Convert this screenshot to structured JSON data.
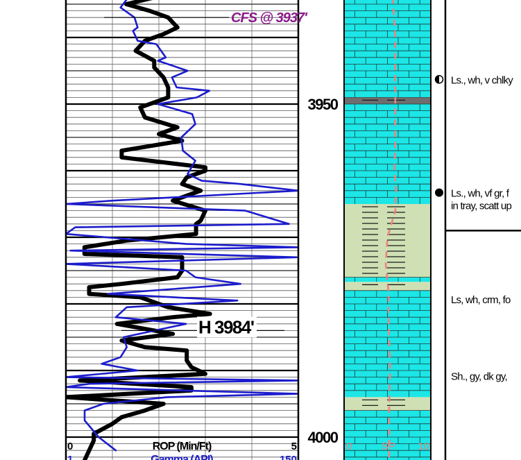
{
  "chart_data": {
    "type": "line",
    "title": "",
    "depth_ticks": [
      {
        "depth": 3950,
        "label": "3950"
      },
      {
        "depth": 4000,
        "label": "4000"
      }
    ],
    "depth_range": [
      3935,
      4003
    ],
    "annotations": [
      {
        "depth": 3937,
        "text": "CFS @ 3937'"
      },
      {
        "depth": 3984,
        "text": "H 3984'"
      }
    ],
    "tracks": {
      "left": {
        "scales": [
          {
            "name": "ROP (Min/Ft)",
            "min": 0,
            "max": 5,
            "min_label": "0",
            "max_label": "5"
          },
          {
            "name": "Gamma (API)",
            "min": 1,
            "max": 150,
            "min_label": "1",
            "max_label": "150"
          }
        ],
        "series": [
          {
            "key": "rop",
            "color": "#000000",
            "points": [
              [
                3934.0,
                1.9
              ],
              [
                3935.0,
                1.3
              ],
              [
                3936.0,
                1.8
              ],
              [
                3937.0,
                2.2
              ],
              [
                3938.5,
                2.4
              ],
              [
                3939.5,
                2.1
              ],
              [
                3940.5,
                1.7
              ],
              [
                3942.0,
                1.5
              ],
              [
                3943.5,
                1.9
              ],
              [
                3944.5,
                1.9
              ],
              [
                3946.0,
                2.1
              ],
              [
                3947.5,
                2.2
              ],
              [
                3949.0,
                2.2
              ],
              [
                3950.5,
                1.6
              ],
              [
                3952.0,
                1.7
              ],
              [
                3953.5,
                2.4
              ],
              [
                3954.5,
                2.0
              ],
              [
                3955.5,
                2.5
              ],
              [
                3957.0,
                1.2
              ],
              [
                3958.0,
                1.2
              ],
              [
                3959.5,
                3.0
              ],
              [
                3960.0,
                3.0
              ],
              [
                3961.0,
                2.6
              ],
              [
                3962.0,
                2.5
              ],
              [
                3963.0,
                2.9
              ],
              [
                3964.5,
                2.3
              ],
              [
                3966.0,
                3.0
              ],
              [
                3967.5,
                2.9
              ],
              [
                3968.0,
                2.8
              ],
              [
                3969.5,
                2.8
              ],
              [
                3970.5,
                1.3
              ],
              [
                3971.5,
                0.4
              ],
              [
                3972.5,
                0.4
              ],
              [
                3973.0,
                2.5
              ],
              [
                3974.0,
                2.5
              ],
              [
                3975.0,
                2.5
              ],
              [
                3976.0,
                2.4
              ],
              [
                3977.0,
                1.2
              ],
              [
                3977.5,
                0.5
              ],
              [
                3978.5,
                0.5
              ],
              [
                3979.0,
                1.6
              ],
              [
                3980.5,
                2.2
              ],
              [
                3981.5,
                3.1
              ],
              [
                3982.0,
                2.3
              ],
              [
                3983.0,
                1.1
              ],
              [
                3984.5,
                2.3
              ],
              [
                3985.5,
                1.2
              ],
              [
                3986.5,
                1.7
              ],
              [
                3987.0,
                2.6
              ],
              [
                3988.5,
                2.6
              ],
              [
                3989.5,
                2.7
              ],
              [
                3990.5,
                3.0
              ],
              [
                3991.5,
                0.3
              ],
              [
                3992.5,
                2.7
              ],
              [
                3993.0,
                2.7
              ],
              [
                3994.0,
                0.0
              ],
              [
                3995.0,
                2.1
              ],
              [
                3996.0,
                1.7
              ],
              [
                3997.0,
                1.2
              ],
              [
                3998.0,
                1.0
              ],
              [
                3999.5,
                0.6
              ],
              [
                4000.5,
                0.6
              ],
              [
                4002.0,
                0.5
              ],
              [
                4003.5,
                0.4
              ]
            ]
          },
          {
            "key": "gamma",
            "color": "#1c1ccc",
            "points": [
              [
                3934.0,
                41
              ],
              [
                3935.5,
                36
              ],
              [
                3937.0,
                45
              ],
              [
                3938.5,
                47
              ],
              [
                3939.0,
                44
              ],
              [
                3940.5,
                47
              ],
              [
                3941.0,
                59
              ],
              [
                3943.0,
                65
              ],
              [
                3943.5,
                60
              ],
              [
                3945.0,
                79
              ],
              [
                3946.0,
                69
              ],
              [
                3947.5,
                72
              ],
              [
                3948.0,
                93
              ],
              [
                3949.0,
                85
              ],
              [
                3950.0,
                60
              ],
              [
                3951.5,
                82
              ],
              [
                3953.0,
                84
              ],
              [
                3955.0,
                75
              ],
              [
                3957.0,
                76
              ],
              [
                3958.5,
                84
              ],
              [
                3960.5,
                79
              ],
              [
                3961.5,
                88
              ],
              [
                3962.0,
                113
              ],
              [
                3963.0,
                150
              ],
              [
                3964.5,
                31
              ],
              [
                3965.0,
                1
              ],
              [
                3966.0,
                116
              ],
              [
                3968.0,
                144
              ],
              [
                3968.5,
                7
              ],
              [
                3969.5,
                1
              ],
              [
                3971.0,
                78
              ],
              [
                3971.5,
                150
              ],
              [
                3972.0,
                4
              ],
              [
                3973.0,
                149
              ],
              [
                3974.0,
                1
              ],
              [
                3975.0,
                78
              ],
              [
                3976.0,
                84
              ],
              [
                3977.0,
                113
              ],
              [
                3978.5,
                28
              ],
              [
                3979.5,
                111
              ],
              [
                3980.5,
                40
              ],
              [
                3982.0,
                33
              ],
              [
                3983.0,
                78
              ],
              [
                3985.0,
                38
              ],
              [
                3986.5,
                40
              ],
              [
                3988.0,
                36
              ],
              [
                3989.0,
                24
              ],
              [
                3990.0,
                47
              ],
              [
                3991.0,
                1
              ],
              [
                3991.5,
                150
              ],
              [
                3992.0,
                16
              ],
              [
                3992.5,
                1
              ],
              [
                3993.5,
                150
              ],
              [
                3994.0,
                66
              ],
              [
                3995.0,
                25
              ],
              [
                3996.0,
                13
              ],
              [
                3997.5,
                13
              ],
              [
                4000.0,
                22
              ],
              [
                4002.0,
                33
              ]
            ]
          }
        ]
      },
      "lithology": {
        "scale": {
          "name": "SP",
          "min_label": "0",
          "max_label": "10"
        },
        "intervals": [
          {
            "top": 3934,
            "base": 3949.0,
            "rock": "limestone"
          },
          {
            "top": 3949.0,
            "base": 3950.0,
            "rock": "dark-shale"
          },
          {
            "top": 3950.0,
            "base": 3965.0,
            "rock": "limestone"
          },
          {
            "top": 3965.0,
            "base": 3976.0,
            "rock": "shale"
          },
          {
            "top": 3976.0,
            "base": 3976.7,
            "rock": "limestone"
          },
          {
            "top": 3976.7,
            "base": 3978.0,
            "rock": "shale"
          },
          {
            "top": 3978.0,
            "base": 3994.0,
            "rock": "limestone"
          },
          {
            "top": 3994.0,
            "base": 3996.0,
            "rock": "shale"
          },
          {
            "top": 3996.0,
            "base": 4004,
            "rock": "limestone"
          }
        ],
        "sp_curve": [
          [
            3934,
            5.6
          ],
          [
            3940,
            5.9
          ],
          [
            3945,
            5.9
          ],
          [
            3950,
            5.9
          ],
          [
            3955,
            5.9
          ],
          [
            3960,
            5.8
          ],
          [
            3963,
            6.0
          ],
          [
            3966,
            5.9
          ],
          [
            3970,
            5.0
          ],
          [
            3974,
            4.8
          ],
          [
            3978,
            5.1
          ],
          [
            3982,
            5.1
          ],
          [
            3985,
            5.2
          ],
          [
            3990,
            5.3
          ],
          [
            3995,
            5.2
          ],
          [
            4000,
            5.2
          ],
          [
            4004,
            5.2
          ]
        ],
        "colors": {
          "limestone": "#1ce6e6",
          "shale": "#cfe0b4",
          "dark_shale": "#6e6e6e",
          "sp": "#f08080"
        }
      },
      "descriptions": [
        {
          "depth": 3946.5,
          "text": "Ls., wh, v chlky",
          "marker": "half-filled"
        },
        {
          "depth": 3963.5,
          "text": "Ls., wh, vf gr, f",
          "text2": "in tray, scatt up",
          "marker": "filled"
        },
        {
          "depth": 3979.5,
          "text": "Ls, wh, crm, fo"
        },
        {
          "depth": 3991.0,
          "text": "Sh., gy, dk gy,"
        }
      ],
      "description_dividers": [
        3969
      ]
    }
  }
}
